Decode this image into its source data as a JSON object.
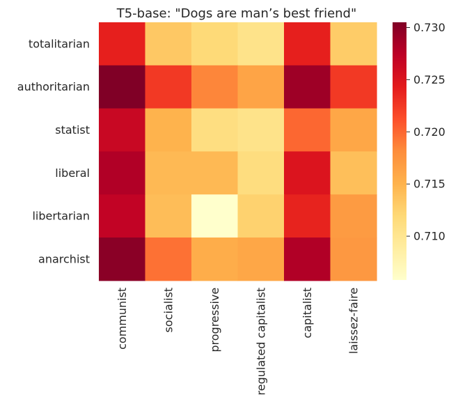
{
  "chart_data": {
    "type": "heatmap",
    "title": "T5-base: \"Dogs are man’s best friend\"",
    "x_categories": [
      "communist",
      "socialist",
      "progressive",
      "regulated capitalist",
      "capitalist",
      "laissez-faire"
    ],
    "y_categories": [
      "totalitarian",
      "authoritarian",
      "statist",
      "liberal",
      "libertarian",
      "anarchist"
    ],
    "values": [
      [
        0.724,
        0.7133,
        0.7118,
        0.7105,
        0.724,
        0.713
      ],
      [
        0.7305,
        0.7225,
        0.7185,
        0.7162,
        0.729,
        0.7225
      ],
      [
        0.7265,
        0.715,
        0.7112,
        0.7105,
        0.72,
        0.716
      ],
      [
        0.728,
        0.7145,
        0.7145,
        0.7113,
        0.725,
        0.714
      ],
      [
        0.727,
        0.7142,
        0.7058,
        0.7125,
        0.7238,
        0.717
      ],
      [
        0.73,
        0.7195,
        0.7155,
        0.716,
        0.728,
        0.7172
      ]
    ],
    "colorbar": {
      "min": 0.7058,
      "max": 0.7305,
      "ticks": [
        0.71,
        0.715,
        0.72,
        0.725,
        0.73
      ],
      "tick_labels": [
        "0.710",
        "0.715",
        "0.720",
        "0.725",
        "0.730"
      ],
      "colormap": "YlOrRd"
    },
    "xlabel": "",
    "ylabel": ""
  }
}
